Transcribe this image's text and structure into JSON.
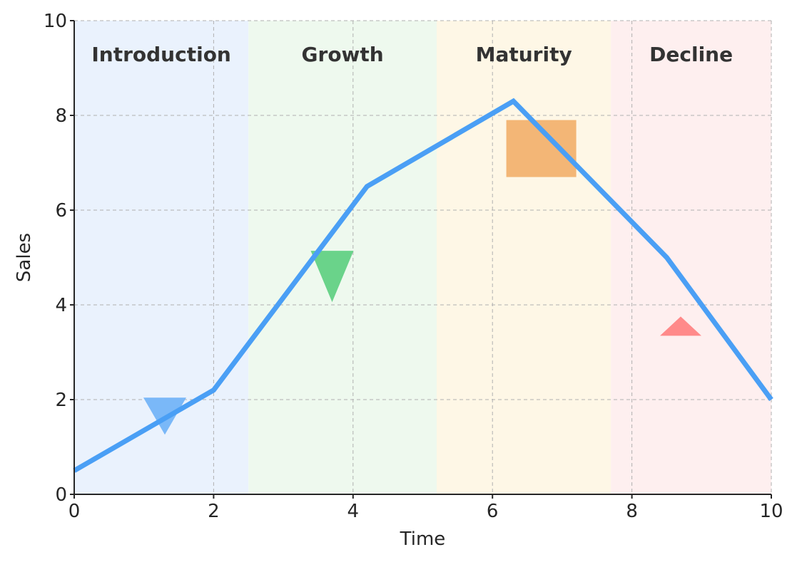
{
  "chart_data": {
    "type": "line",
    "xlabel": "Time",
    "ylabel": "Sales",
    "xlim": [
      0,
      10
    ],
    "ylim": [
      0,
      10
    ],
    "xticks": [
      0,
      2,
      4,
      6,
      8,
      10
    ],
    "yticks": [
      0,
      2,
      4,
      6,
      8,
      10
    ],
    "grid": true,
    "phases": [
      {
        "label": "Introduction",
        "start": 0,
        "end": 2.5,
        "color": "#eaf2fd"
      },
      {
        "label": "Growth",
        "start": 2.5,
        "end": 5.2,
        "color": "#eef9ee"
      },
      {
        "label": "Maturity",
        "start": 5.2,
        "end": 7.7,
        "color": "#fef7e6"
      },
      {
        "label": "Decline",
        "start": 7.7,
        "end": 10,
        "color": "#feefef"
      }
    ],
    "series": [
      {
        "color": "#4a9ff5",
        "x": [
          0,
          2,
          4.2,
          6.3,
          8.5,
          10
        ],
        "y": [
          0.5,
          2.2,
          6.5,
          8.3,
          5.0,
          2.0
        ]
      }
    ],
    "markers": [
      {
        "shape": "triangle-down",
        "x": 1.3,
        "y": 1.65,
        "color": "#7ab8f8"
      },
      {
        "shape": "triangle-down",
        "x": 3.7,
        "y": 4.6,
        "color": "#6ad38a"
      },
      {
        "shape": "square",
        "x": 6.7,
        "y": 7.3,
        "color": "#f3b676"
      },
      {
        "shape": "triangle-up",
        "x": 8.7,
        "y": 3.55,
        "color": "#ff8a8a"
      }
    ]
  }
}
